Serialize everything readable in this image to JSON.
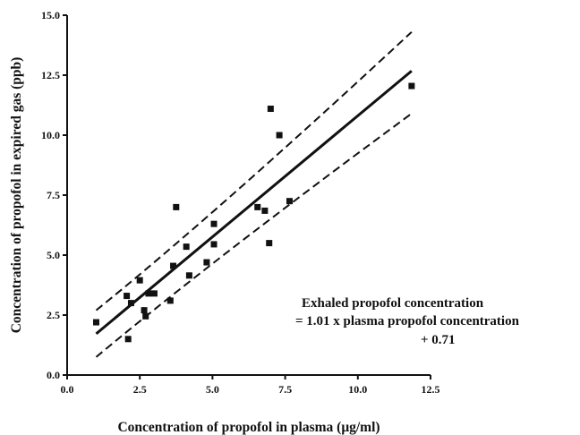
{
  "chart_data": {
    "type": "scatter",
    "title": "",
    "xlabel": "Concentration of propofol in plasma (μg/ml)",
    "ylabel": "Concentration of propofol in expired gas (ppb)",
    "xlim": [
      0,
      12.5
    ],
    "ylim": [
      0,
      15
    ],
    "xticks": [
      "0.0",
      "2.5",
      "5.0",
      "7.5",
      "10.0",
      "12.5"
    ],
    "yticks": [
      "0.0",
      "2.5",
      "5.0",
      "7.5",
      "10.0",
      "12.5",
      "15.0"
    ],
    "grid": false,
    "points": [
      {
        "x": 1.0,
        "y": 2.2
      },
      {
        "x": 2.05,
        "y": 3.3
      },
      {
        "x": 2.1,
        "y": 1.5
      },
      {
        "x": 2.2,
        "y": 3.0
      },
      {
        "x": 2.5,
        "y": 3.95
      },
      {
        "x": 2.65,
        "y": 2.7
      },
      {
        "x": 2.7,
        "y": 2.45
      },
      {
        "x": 2.8,
        "y": 3.4
      },
      {
        "x": 3.0,
        "y": 3.4
      },
      {
        "x": 3.55,
        "y": 3.1
      },
      {
        "x": 3.65,
        "y": 4.55
      },
      {
        "x": 3.75,
        "y": 7.0
      },
      {
        "x": 4.1,
        "y": 5.35
      },
      {
        "x": 4.2,
        "y": 4.15
      },
      {
        "x": 4.8,
        "y": 4.7
      },
      {
        "x": 5.05,
        "y": 6.3
      },
      {
        "x": 5.05,
        "y": 5.45
      },
      {
        "x": 6.55,
        "y": 7.0
      },
      {
        "x": 6.8,
        "y": 6.85
      },
      {
        "x": 6.95,
        "y": 5.5
      },
      {
        "x": 7.0,
        "y": 11.1
      },
      {
        "x": 7.3,
        "y": 10.0
      },
      {
        "x": 7.65,
        "y": 7.25
      },
      {
        "x": 11.85,
        "y": 12.05
      }
    ],
    "regression": {
      "slope": 1.01,
      "intercept": 0.71,
      "x_range": [
        1.0,
        11.85
      ]
    },
    "confidence_band": {
      "upper": [
        {
          "x": 1.0,
          "y": 2.7
        },
        {
          "x": 5.0,
          "y": 6.6
        },
        {
          "x": 11.85,
          "y": 14.3
        }
      ],
      "lower": [
        {
          "x": 1.0,
          "y": 0.75
        },
        {
          "x": 5.0,
          "y": 4.8
        },
        {
          "x": 11.85,
          "y": 10.9
        }
      ]
    },
    "annotation": [
      "Exhaled propofol concentration",
      "= 1.01 x plasma propofol concentration",
      "+ 0.71"
    ]
  }
}
